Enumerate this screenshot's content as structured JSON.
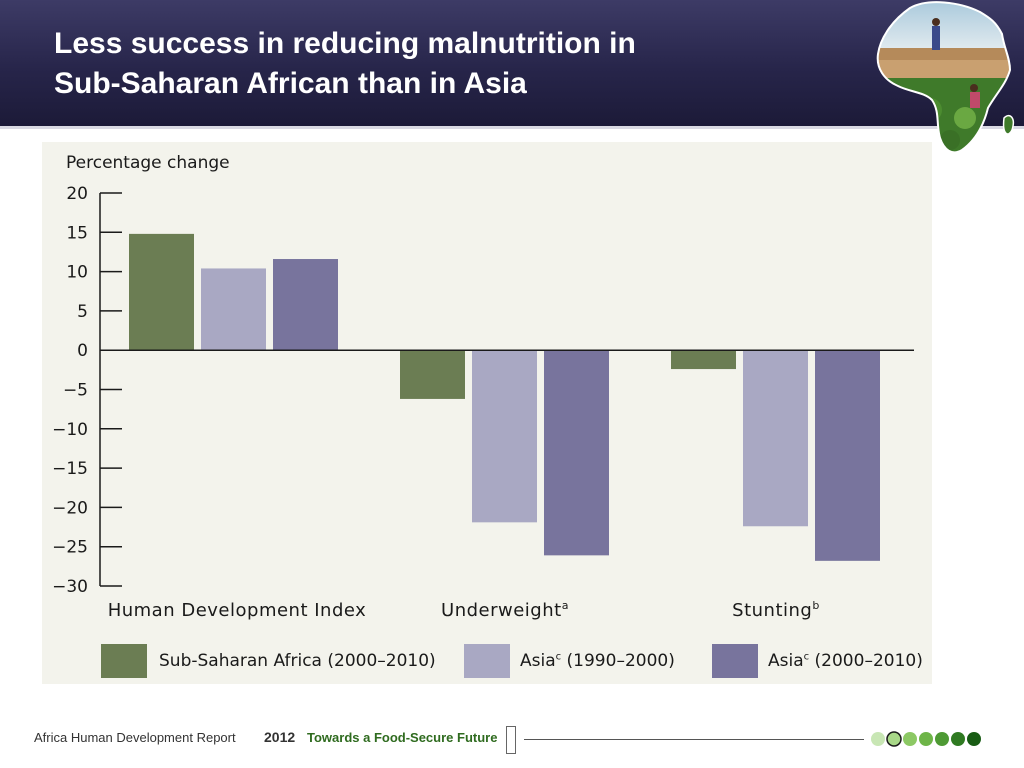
{
  "slide": {
    "title_line1": "Less success in reducing malnutrition in",
    "title_line2": "Sub-Saharan African than in Asia"
  },
  "chart_data": {
    "type": "bar",
    "ylabel": "Percentage change",
    "ylim": [
      -30,
      20
    ],
    "yticks": [
      20,
      15,
      10,
      5,
      0,
      -5,
      -10,
      -15,
      -20,
      -25,
      -30
    ],
    "ytick_labels": [
      "20",
      "15",
      "10",
      "5",
      "0",
      "−5",
      "−10",
      "−15",
      "−20",
      "−25",
      "−30"
    ],
    "categories": [
      {
        "label": "Human Development Index",
        "superscript": ""
      },
      {
        "label": "Underweight",
        "superscript": "a"
      },
      {
        "label": "Stunting",
        "superscript": "b"
      }
    ],
    "series": [
      {
        "name": "Sub-Saharan Africa (2000–2010)",
        "color": "#6b7d53",
        "values": [
          14.8,
          -6.2,
          -2.4
        ]
      },
      {
        "name": "Asia (1990–2000)",
        "color": "#a9a8c3",
        "values": [
          10.4,
          -21.9,
          -22.4
        ]
      },
      {
        "name": "Asia (2000–2010)",
        "color": "#78749d",
        "values": [
          11.6,
          -26.1,
          -26.8
        ]
      }
    ],
    "legend": [
      {
        "prefix": "Sub-Saharan Africa (2000–2010)",
        "sup": "",
        "suffix": ""
      },
      {
        "prefix": "Asia",
        "sup": "c",
        "suffix": " (1990–2000)"
      },
      {
        "prefix": "Asia",
        "sup": "c",
        "suffix": " (2000–2010)"
      }
    ]
  },
  "footer": {
    "report": "Africa Human Development Report",
    "year": "2012",
    "tagline": "Towards a Food-Secure Future"
  },
  "progress_dots": {
    "total": 7,
    "current": 2,
    "colors": [
      "#c8e6b4",
      "#a8d888",
      "#8cc864",
      "#6eb548",
      "#4e9a34",
      "#2f7a22",
      "#185c14"
    ]
  }
}
